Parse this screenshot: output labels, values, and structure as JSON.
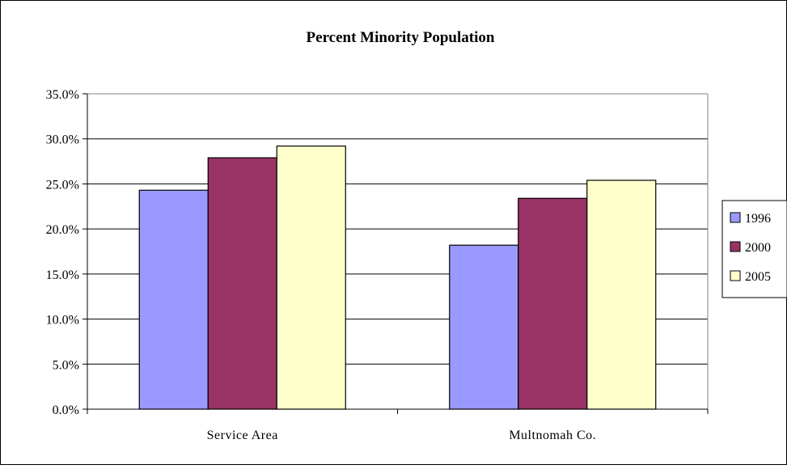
{
  "chart_data": {
    "type": "bar",
    "title": "Percent Minority Population",
    "xlabel": "",
    "ylabel": "",
    "categories": [
      "Service Area",
      "Multnomah Co."
    ],
    "series": [
      {
        "name": "1996",
        "values": [
          24.3,
          18.2
        ],
        "color": "#9999FF"
      },
      {
        "name": "2000",
        "values": [
          27.9,
          23.4
        ],
        "color": "#993366"
      },
      {
        "name": "2005",
        "values": [
          29.2,
          25.4
        ],
        "color": "#FFFFCC"
      }
    ],
    "ylim": [
      0,
      35
    ],
    "ytick_step": 5,
    "ytick_format": "percent-1dp",
    "grid": true,
    "legend_position": "right",
    "plot_background": "#ffffff",
    "gridline_color": "#000000"
  }
}
